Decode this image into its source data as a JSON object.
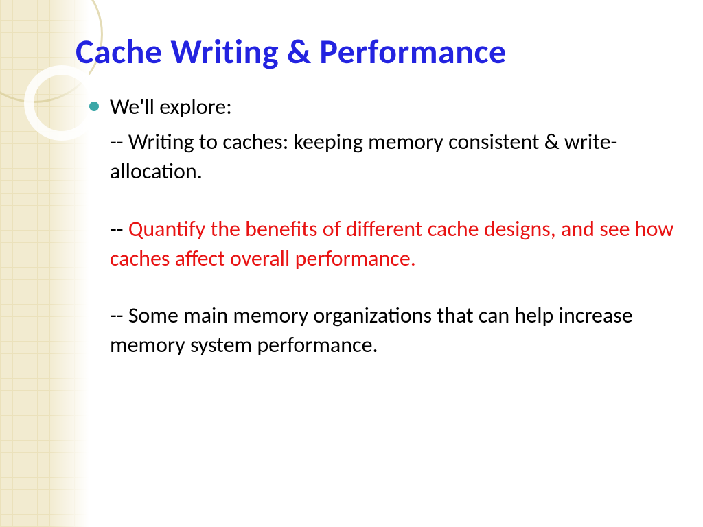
{
  "slide": {
    "title": "Cache Writing & Performance",
    "title_color": "#2323e0",
    "title_fontsize": 50,
    "bullet_color": "#3aa7a7",
    "body_fontsize": 32,
    "lead": "We'll explore:",
    "item1": "-- Writing to caches: keeping memory consistent & write-allocation.",
    "item2_prefix": "-- ",
    "item2_red": "Quantify the benefits of different cache designs, and see how caches affect overall performance.",
    "item3": "-- Some main memory organizations that can help increase memory system performance.",
    "highlight_color": "#e81313",
    "background_accent": "#f0e8c8",
    "grid_line_color": "#e8dcb0"
  }
}
